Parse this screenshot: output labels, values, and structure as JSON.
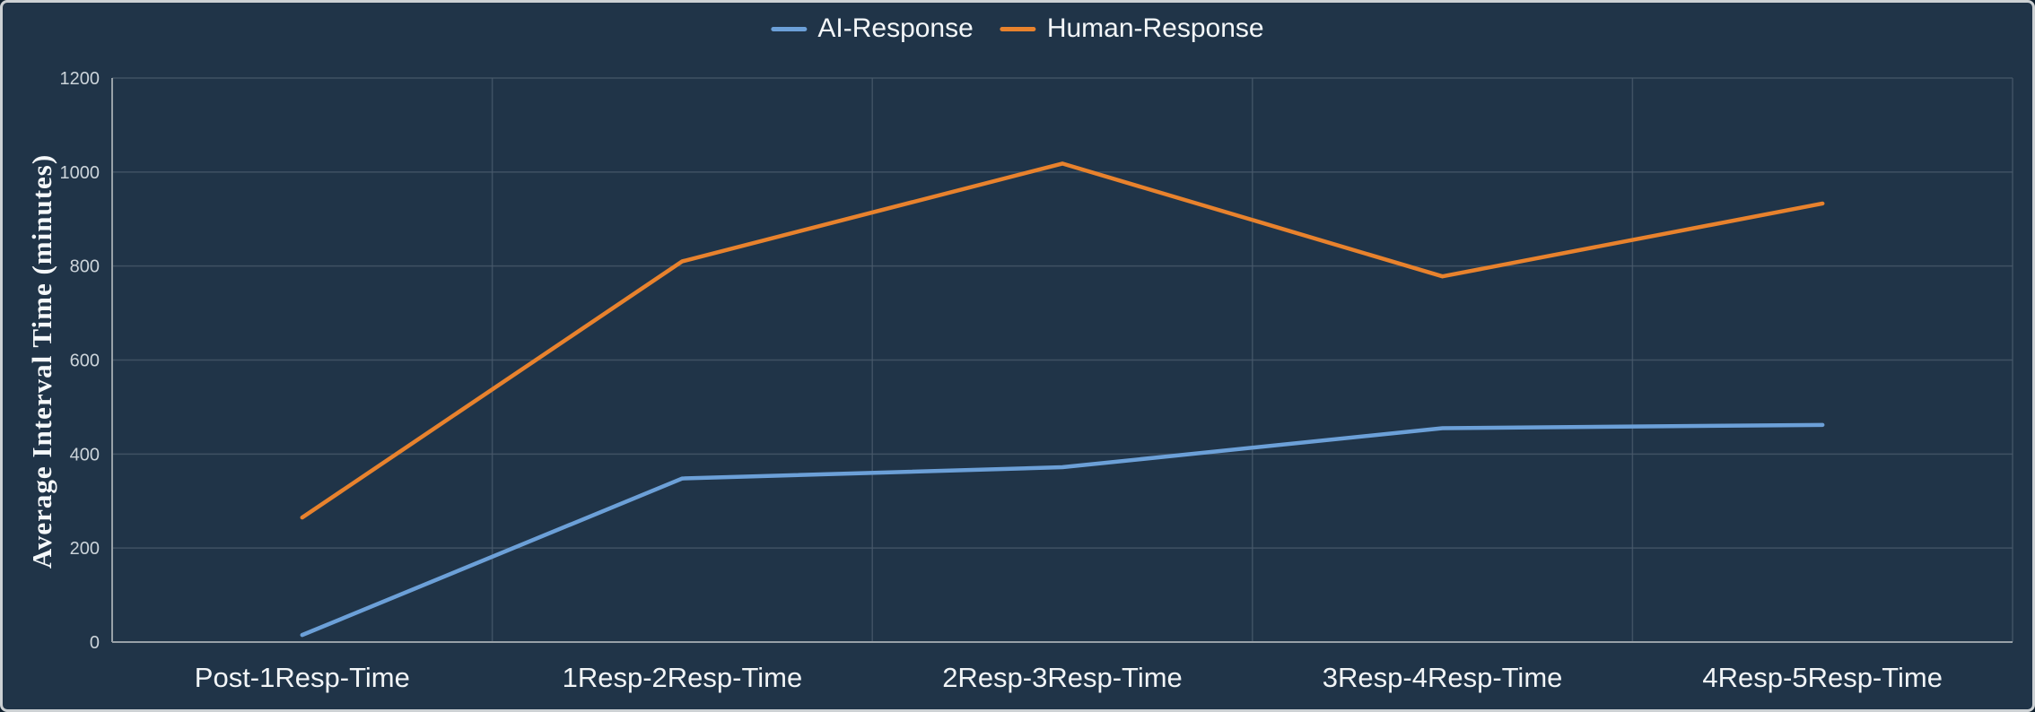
{
  "chart": {
    "background_color": "#203448",
    "frame_border_color": "#cdd1d4"
  },
  "chart_data": {
    "type": "line",
    "categories": [
      "Post-1Resp-Time",
      "1Resp-2Resp-Time",
      "2Resp-3Resp-Time",
      "3Resp-4Resp-Time",
      "4Resp-5Resp-Time"
    ],
    "series": [
      {
        "name": "AI-Response",
        "color": "#6ca0d8",
        "values": [
          15,
          348,
          372,
          455,
          462
        ]
      },
      {
        "name": "Human-Response",
        "color": "#e8822d",
        "values": [
          265,
          810,
          1018,
          778,
          933
        ]
      }
    ],
    "title": "",
    "xlabel": "",
    "ylabel": "Average Interval Time  (minutes)",
    "ylim": [
      0,
      1200
    ],
    "yticks": [
      0,
      200,
      400,
      600,
      800,
      1000,
      1200
    ],
    "grid": true,
    "legend_position": "top-center"
  }
}
